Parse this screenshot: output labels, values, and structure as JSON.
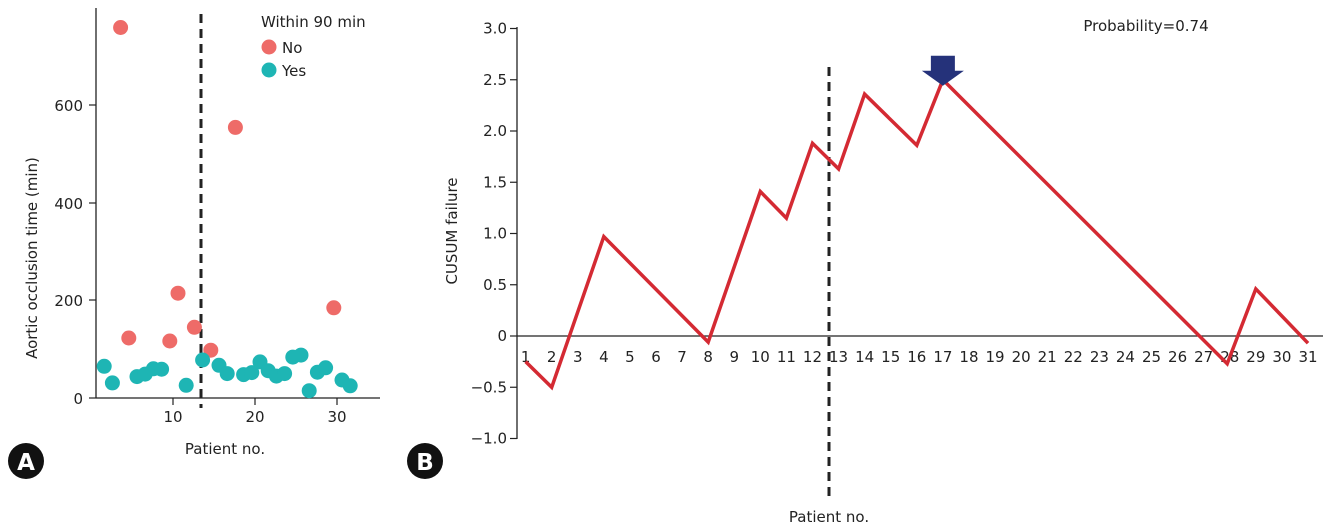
{
  "panels": {
    "a_badge": "A",
    "b_badge": "B"
  },
  "colors": {
    "no": "#ee6b68",
    "yes": "#1eb5b4",
    "cusum_line": "#d42a33",
    "marker": "#25327a",
    "divider": "#222222"
  },
  "chart_data": [
    {
      "id": "A",
      "type": "scatter",
      "xlabel": "Patient no.",
      "ylabel": "Aortic occlusion time (min)",
      "xlim": [
        0,
        35
      ],
      "ylim": [
        0,
        770
      ],
      "x_ticks": [
        10,
        20,
        30
      ],
      "y_ticks": [
        0,
        200,
        400,
        600
      ],
      "divider_x": 13.2,
      "legend": {
        "title": "Within 90 min",
        "position": "top-right",
        "entries": [
          {
            "label": "No",
            "color": "#ee6b68"
          },
          {
            "label": "Yes",
            "color": "#1eb5b4"
          }
        ]
      },
      "series": [
        {
          "name": "No",
          "points": [
            [
              3,
              760
            ],
            [
              4,
              123
            ],
            [
              9,
              117
            ],
            [
              10,
              215
            ],
            [
              12,
              145
            ],
            [
              14,
              98
            ],
            [
              17,
              555
            ],
            [
              29,
              185
            ]
          ]
        },
        {
          "name": "Yes",
          "points": [
            [
              1,
              65
            ],
            [
              2,
              31
            ],
            [
              5,
              44
            ],
            [
              6,
              49
            ],
            [
              7,
              60
            ],
            [
              8,
              59
            ],
            [
              11,
              26
            ],
            [
              13,
              78
            ],
            [
              15,
              67
            ],
            [
              16,
              50
            ],
            [
              18,
              48
            ],
            [
              19,
              52
            ],
            [
              20,
              74
            ],
            [
              21,
              56
            ],
            [
              22,
              45
            ],
            [
              23,
              50
            ],
            [
              24,
              84
            ],
            [
              25,
              88
            ],
            [
              26,
              15
            ],
            [
              27,
              53
            ],
            [
              28,
              62
            ],
            [
              30,
              37
            ],
            [
              31,
              25
            ]
          ]
        }
      ]
    },
    {
      "id": "B",
      "type": "line",
      "xlabel": "Patient no.",
      "ylabel": "CUSUM failure",
      "annotation": "Probability=0.74",
      "ylim": [
        -1.0,
        3.0
      ],
      "y_ticks": [
        -1.0,
        -0.5,
        0,
        0.5,
        1.0,
        1.5,
        2.0,
        2.5,
        3.0
      ],
      "y_tick_labels": [
        "−1.0",
        "−0.5",
        "0",
        "0.5",
        "1.0",
        "1.5",
        "2.0",
        "2.5",
        "3.0"
      ],
      "x": [
        1,
        2,
        3,
        4,
        5,
        6,
        7,
        8,
        9,
        10,
        11,
        12,
        13,
        14,
        15,
        16,
        17,
        18,
        19,
        20,
        21,
        22,
        23,
        24,
        25,
        26,
        27,
        28,
        29,
        30,
        31
      ],
      "divider_x": 12.9,
      "marker_x": 17,
      "series": [
        {
          "points": [
            [
              1,
              -0.25
            ],
            [
              2,
              -0.5
            ],
            [
              4,
              0.97
            ],
            [
              8,
              -0.06
            ],
            [
              10,
              1.41
            ],
            [
              11,
              1.15
            ],
            [
              12,
              1.88
            ],
            [
              13,
              1.63
            ],
            [
              14,
              2.36
            ],
            [
              16,
              1.86
            ],
            [
              17,
              2.5
            ],
            [
              27.9,
              -0.27
            ],
            [
              29,
              0.46
            ],
            [
              31,
              -0.07
            ]
          ]
        }
      ]
    }
  ]
}
